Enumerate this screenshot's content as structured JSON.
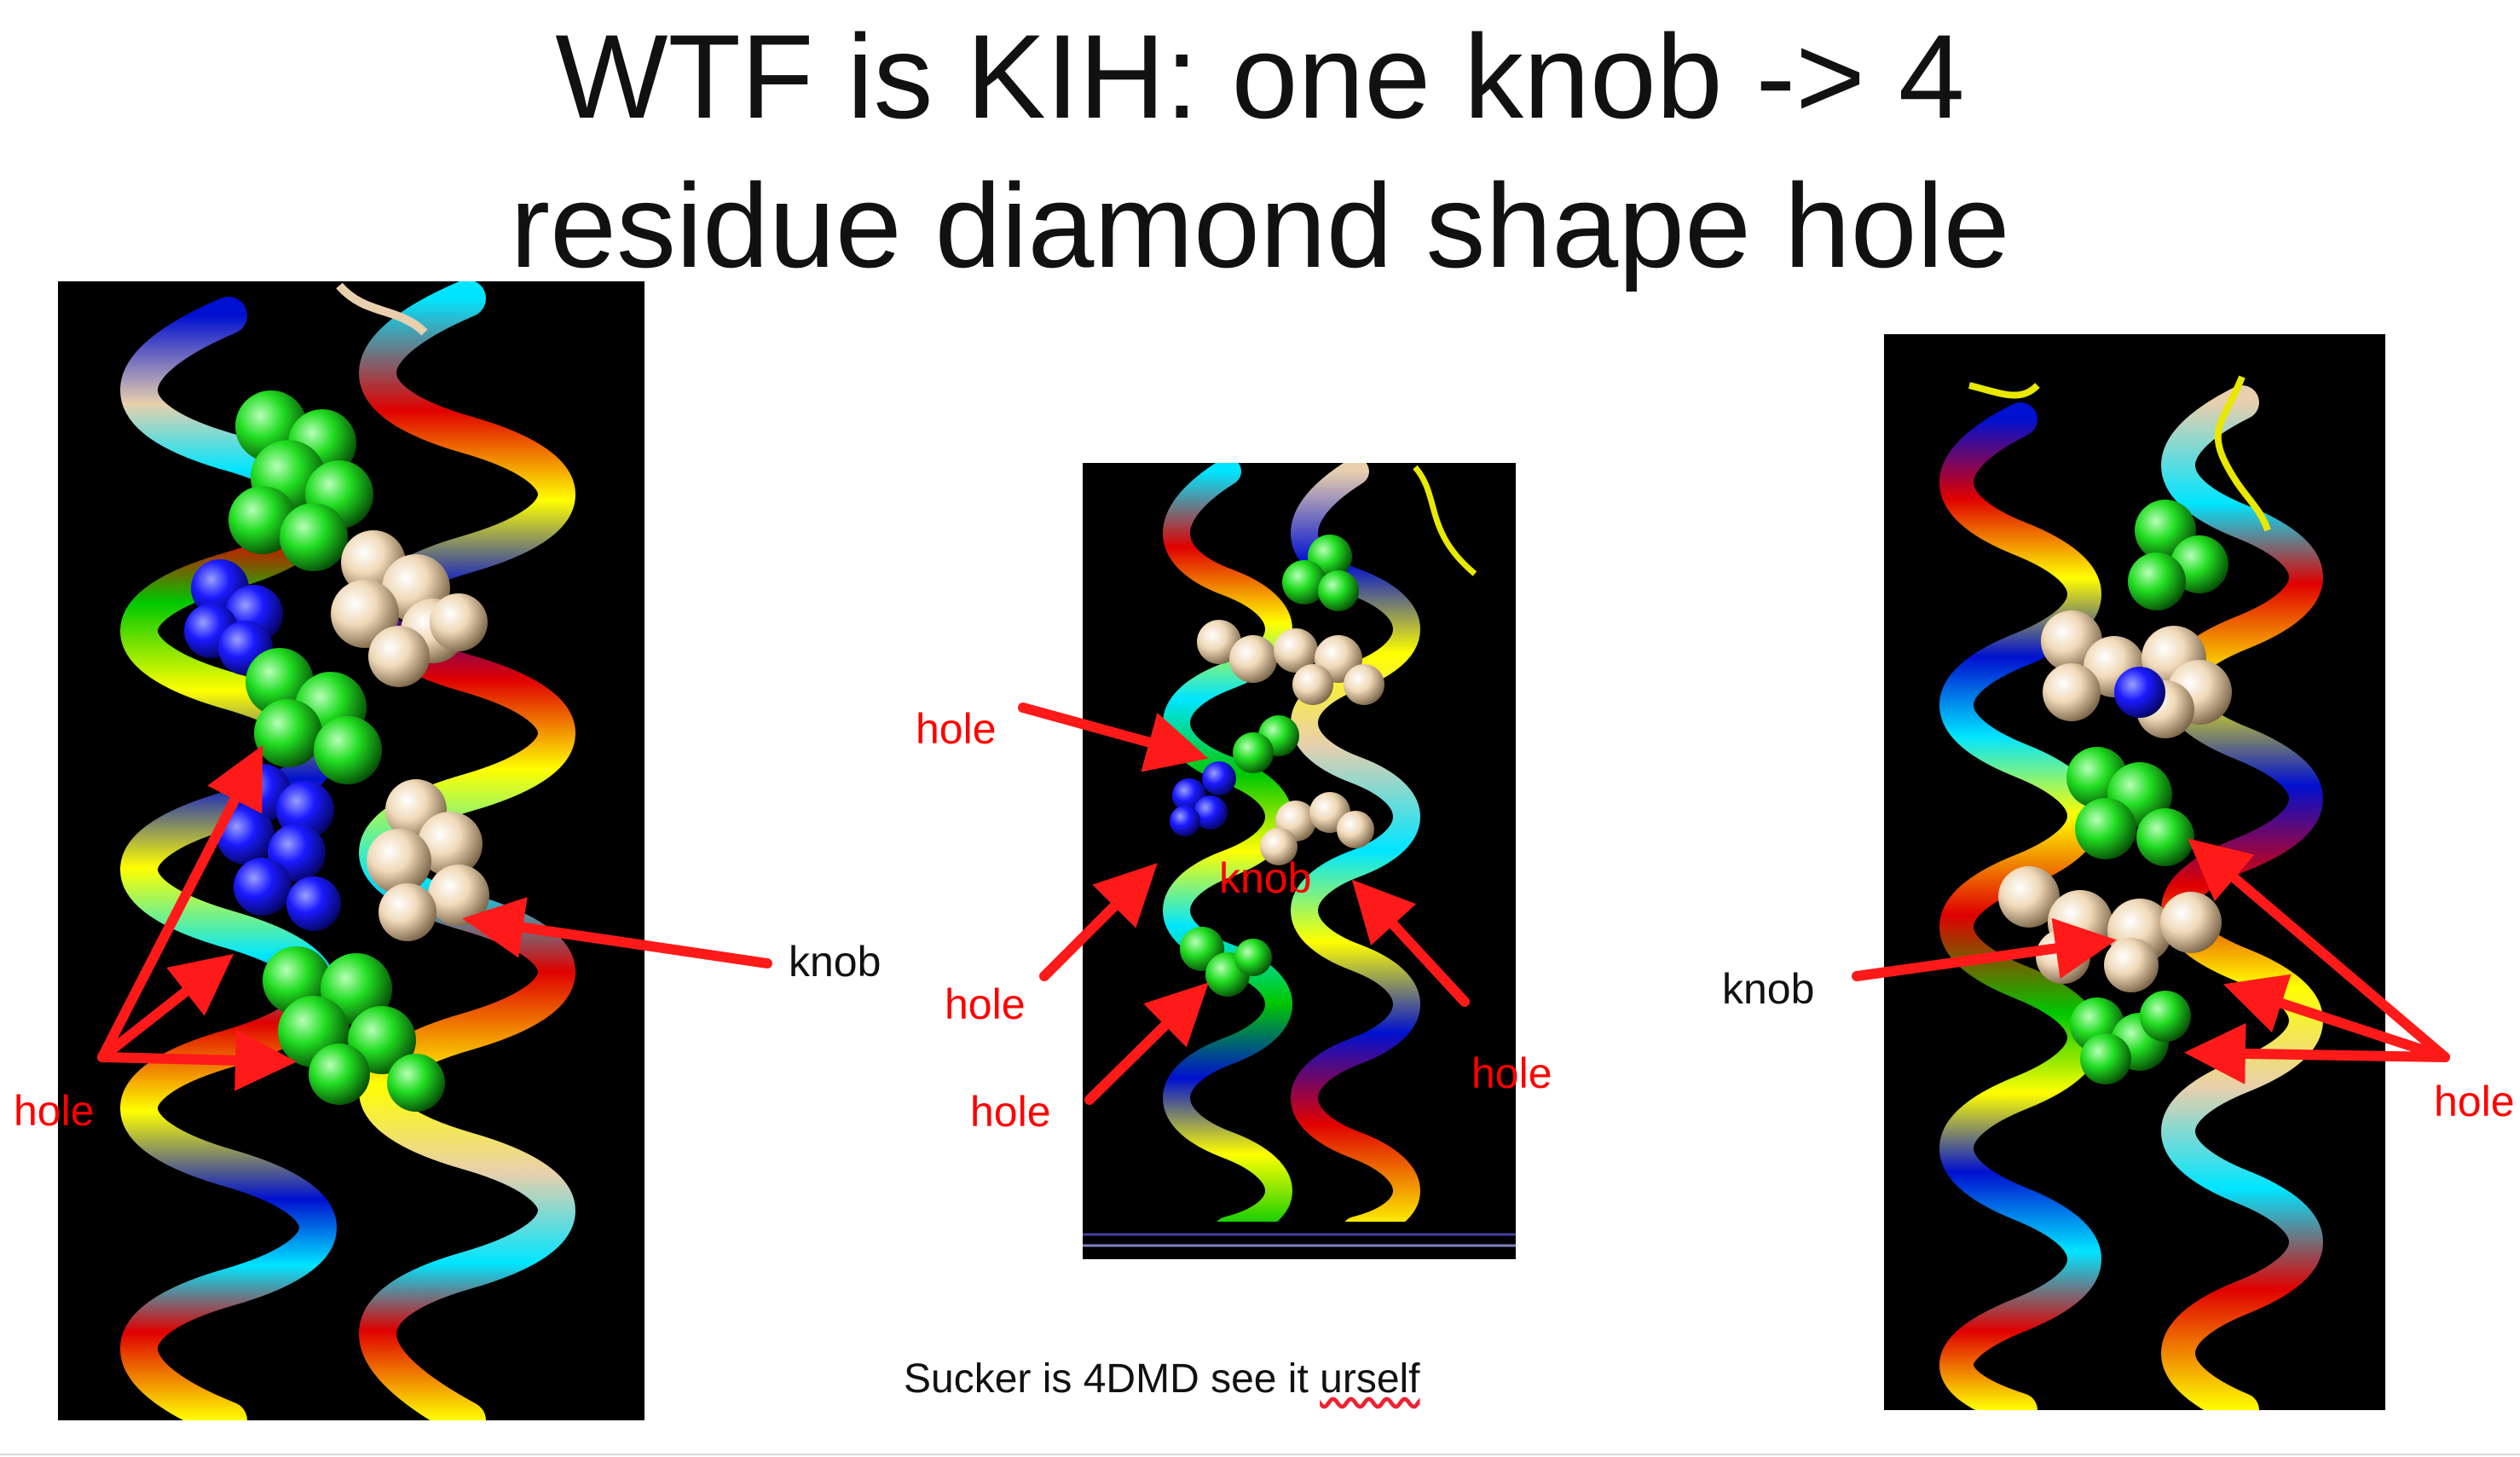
{
  "slide": {
    "title_line1": "WTF is KIH: one knob  -> 4",
    "title_line2": "residue diamond shape hole",
    "caption_prefix": "Sucker is 4DMD see it ",
    "caption_underlined": "urself"
  },
  "labels": {
    "left_hole": "hole",
    "left_knob": "knob",
    "middle_hole_top": "hole",
    "middle_knob": "knob",
    "middle_hole_left": "hole",
    "middle_hole_bottom": "hole",
    "middle_hole_right": "hole",
    "right_knob": "knob",
    "right_hole": "hole"
  },
  "colors": {
    "arrow": "#ff1a1a",
    "label_red": "#ff0000",
    "helix_yellow": "#ffff00",
    "helix_cyan": "#00e5ff",
    "helix_blue": "#0010d0",
    "helix_red": "#e00000",
    "helix_green": "#00c800",
    "helix_wheat": "#e8cfae",
    "sphere_green": "#22dd22",
    "sphere_blue": "#1a1aff",
    "sphere_wheat": "#f0d9b8"
  },
  "images": [
    {
      "name": "left-structure",
      "description_icon": "coiled-coil-render"
    },
    {
      "name": "middle-structure",
      "description_icon": "coiled-coil-render"
    },
    {
      "name": "right-structure",
      "description_icon": "coiled-coil-render"
    }
  ]
}
